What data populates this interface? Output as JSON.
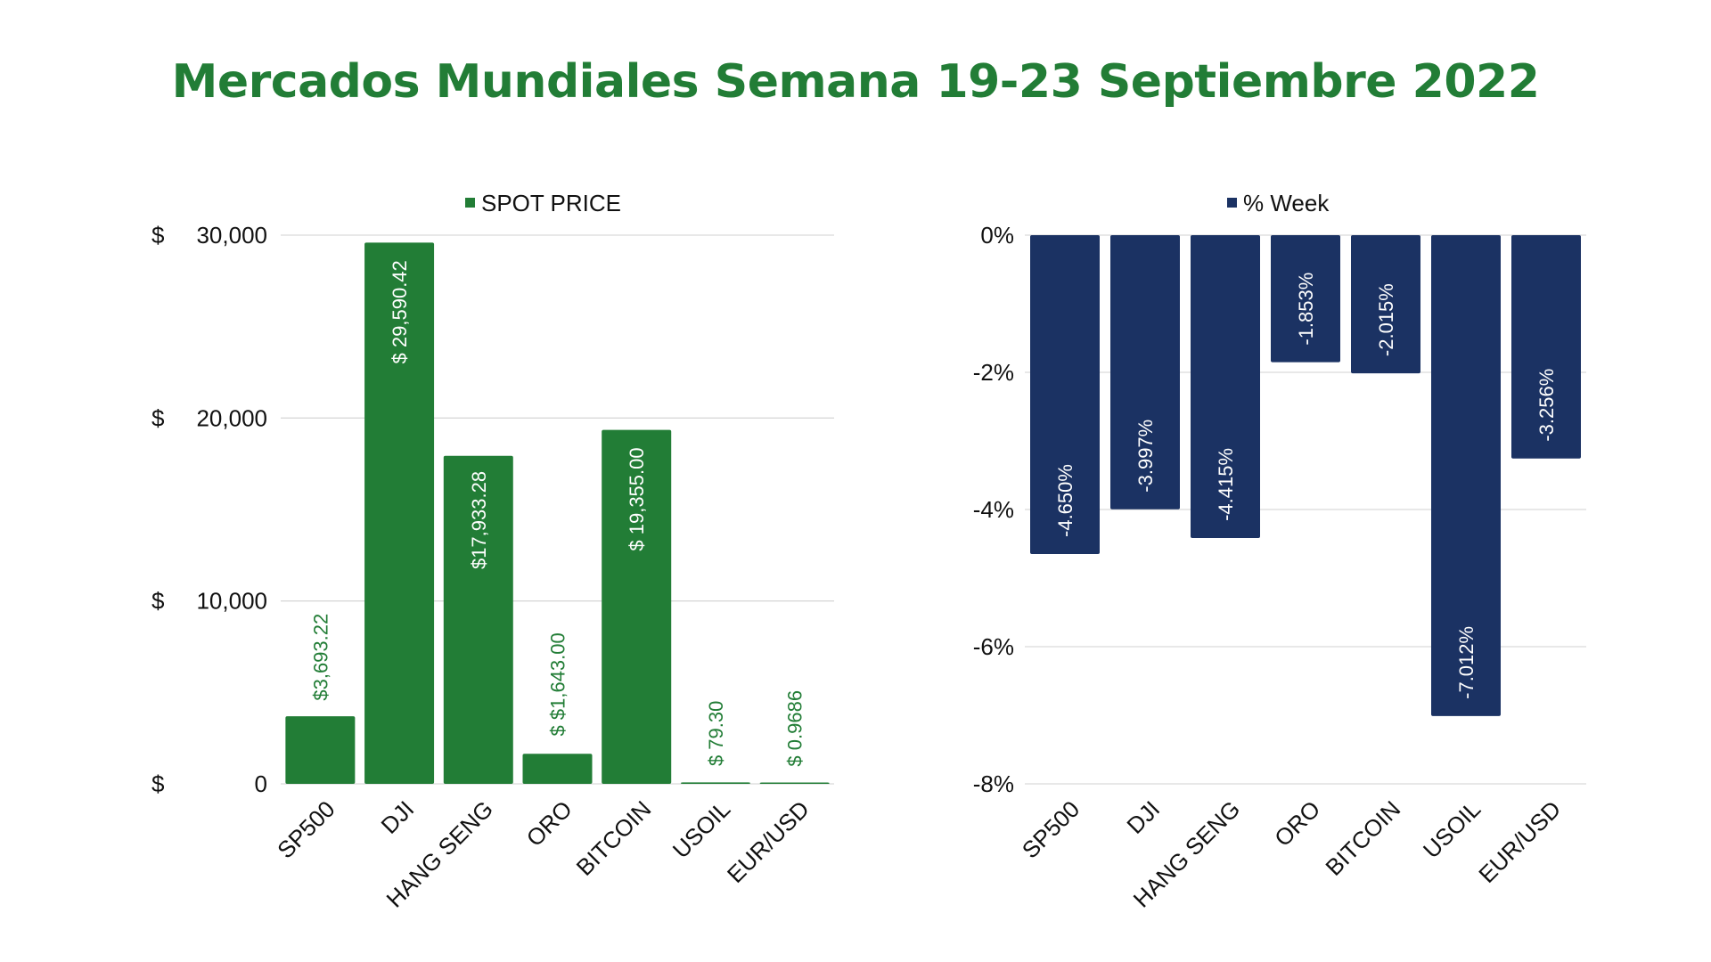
{
  "title": "Mercados Mundiales Semana 19-23 Septiembre 2022",
  "chart_data": [
    {
      "type": "bar",
      "legend": "SPOT PRICE",
      "legend_position": "top",
      "color": "#227d36",
      "grid": true,
      "categories": [
        "SP500",
        "DJI",
        "HANG SENG",
        "ORO",
        "BITCOIN",
        "USOIL",
        "EUR/USD"
      ],
      "values": [
        3693.22,
        29590.42,
        17933.28,
        1643.0,
        19355.0,
        79.3,
        0.9686
      ],
      "data_labels": [
        "$3,693.22",
        "$ 29,590.42",
        "$17,933.28",
        "$ $1,643.00",
        "$ 19,355.00",
        "$ 79.30",
        "$ 0.9686"
      ],
      "y_ticks": [
        0,
        10000,
        20000,
        30000
      ],
      "y_tick_labels": [
        "$     0",
        "$   10,000",
        "$   20,000",
        "$   30,000"
      ],
      "ylim": [
        0,
        30000
      ]
    },
    {
      "type": "bar",
      "legend": "% Week",
      "legend_position": "top",
      "color": "#1b3263",
      "grid": true,
      "categories": [
        "SP500",
        "DJI",
        "HANG SENG",
        "ORO",
        "BITCOIN",
        "USOIL",
        "EUR/USD"
      ],
      "values": [
        -4.65,
        -3.997,
        -4.415,
        -1.853,
        -2.015,
        -7.012,
        -3.256
      ],
      "data_labels": [
        "-4.650%",
        "-3.997%",
        "-4.415%",
        "-1.853%",
        "-2.015%",
        "-7.012%",
        "-3.256%"
      ],
      "y_ticks": [
        0,
        -2,
        -4,
        -6,
        -8
      ],
      "y_tick_labels": [
        "0%",
        "-2%",
        "-4%",
        "-6%",
        "-8%"
      ],
      "ylim": [
        -8,
        0
      ]
    }
  ]
}
